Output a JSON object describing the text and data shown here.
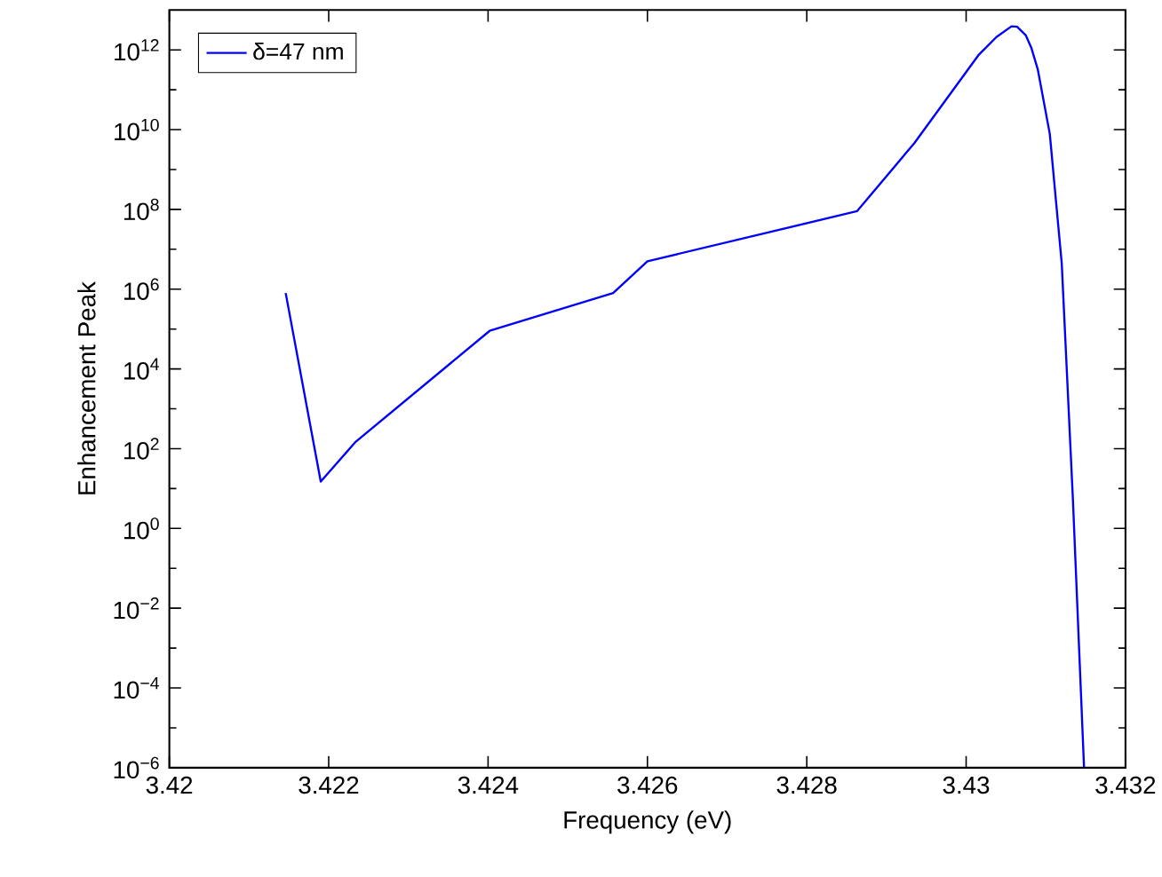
{
  "chart_data": {
    "type": "line",
    "xlabel": "Frequency (eV)",
    "ylabel": "Enhancement Peak",
    "log": "y",
    "legend": "top left",
    "xlim": [
      3.42,
      3.432
    ],
    "xticks": [
      3.42,
      3.422,
      3.424,
      3.426,
      3.428,
      3.43,
      3.432
    ],
    "ylim": [
      1e-06,
      10000000000000.0
    ],
    "yticks": [
      {
        "value": 1e-06,
        "label": "10$^{−6}$"
      },
      {
        "value": 0.0001,
        "label": "10$^{−4}$"
      },
      {
        "value": 0.01,
        "label": "10$^{−2}$"
      },
      {
        "value": 1,
        "label": "10$^{0}$"
      },
      {
        "value": 100.0,
        "label": "10$^{2}$"
      },
      {
        "value": 10000.0,
        "label": "10$^{4}$"
      },
      {
        "value": 1000000.0,
        "label": "10$^{6}$"
      },
      {
        "value": 100000000.0,
        "label": "10$^{8}$"
      },
      {
        "value": 10000000000.0,
        "label": "10$^{10}$"
      },
      {
        "value": 1000000000000.0,
        "label": "10$^{12}$"
      }
    ],
    "series": [
      {
        "name": "δ=47 nm",
        "color": "#0000ff",
        "x": [
          3.42146,
          3.4219,
          3.42234,
          3.42402,
          3.42557,
          3.426,
          3.42863,
          3.42935,
          3.43016,
          3.43038,
          3.43057,
          3.43064,
          3.43075,
          3.43082,
          3.4309,
          3.43105,
          3.4312,
          3.43134,
          3.43148
        ],
        "values": [
          800000.0,
          15,
          150,
          90000.0,
          800000.0,
          5000000.0,
          90000000.0,
          4600000000.0,
          760000000000.0,
          2100000000000.0,
          3900000000000.0,
          3800000000000.0,
          2300000000000.0,
          1100000000000.0,
          320000000000.0,
          7800000000.0,
          4400000.0,
          5.4,
          1e-06
        ]
      }
    ]
  }
}
